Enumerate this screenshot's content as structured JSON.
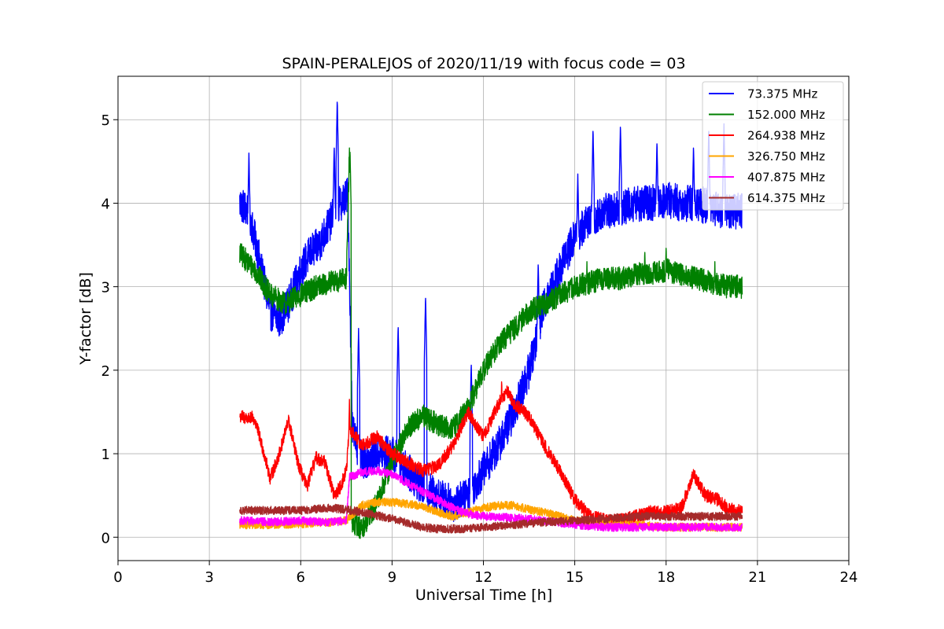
{
  "chart_data": {
    "type": "line",
    "title": "SPAIN-PERALEJOS of 2020/11/19 with focus code = 03",
    "xlabel": "Universal Time [h]",
    "ylabel": "Y-factor [dB]",
    "xlim": [
      0,
      24
    ],
    "ylim": [
      -0.28,
      5.52
    ],
    "xticks": [
      0,
      3,
      6,
      9,
      12,
      15,
      18,
      21,
      24
    ],
    "yticks": [
      0,
      1,
      2,
      3,
      4,
      5
    ],
    "grid": true,
    "legend_position": "top-right",
    "series": [
      {
        "name": "  73.375 MHz",
        "color": "#0000ff",
        "x": [
          4.0,
          4.3,
          4.6,
          5.0,
          5.3,
          5.6,
          6.0,
          6.3,
          6.6,
          7.0,
          7.3,
          7.55,
          7.7,
          8.0,
          8.5,
          9.0,
          9.5,
          10.0,
          10.5,
          11.0,
          11.5,
          12.0,
          12.5,
          13.0,
          13.5,
          14.0,
          14.5,
          15.0,
          15.5,
          16.0,
          16.5,
          17.0,
          17.5,
          18.0,
          18.5,
          19.0,
          19.5,
          20.0,
          20.5
        ],
        "y": [
          4.0,
          3.9,
          3.4,
          2.7,
          2.6,
          2.8,
          3.2,
          3.4,
          3.5,
          3.8,
          4.0,
          4.1,
          1.3,
          0.9,
          1.0,
          1.0,
          0.8,
          0.6,
          0.5,
          0.4,
          0.5,
          0.8,
          1.1,
          1.5,
          2.0,
          2.8,
          3.2,
          3.6,
          3.8,
          3.9,
          3.95,
          4.0,
          4.0,
          4.05,
          4.0,
          4.0,
          3.95,
          3.9,
          3.9
        ],
        "peaks": [
          [
            4.3,
            4.6
          ],
          [
            7.1,
            4.7
          ],
          [
            7.2,
            5.25
          ],
          [
            7.9,
            2.5
          ],
          [
            9.2,
            2.55
          ],
          [
            10.1,
            2.9
          ],
          [
            11.6,
            2.1
          ],
          [
            13.8,
            3.3
          ],
          [
            15.1,
            4.35
          ],
          [
            15.6,
            4.9
          ],
          [
            16.5,
            4.95
          ],
          [
            17.7,
            4.75
          ],
          [
            18.9,
            4.7
          ],
          [
            19.4,
            4.9
          ],
          [
            19.9,
            4.95
          ]
        ],
        "noise": 0.22
      },
      {
        "name": "152.000 MHz",
        "color": "#008000",
        "x": [
          4.0,
          4.5,
          5.0,
          5.5,
          6.0,
          6.5,
          7.0,
          7.5,
          7.6,
          7.65,
          8.0,
          8.5,
          9.0,
          9.5,
          10.0,
          10.5,
          11.0,
          11.5,
          12.0,
          12.5,
          13.0,
          13.5,
          14.0,
          14.5,
          15.0,
          15.5,
          16.0,
          16.5,
          17.0,
          17.5,
          18.0,
          18.5,
          19.0,
          19.5,
          20.0,
          20.5
        ],
        "y": [
          3.4,
          3.2,
          2.9,
          2.8,
          2.9,
          3.0,
          3.05,
          3.1,
          4.6,
          0.2,
          0.1,
          0.4,
          0.9,
          1.3,
          1.45,
          1.35,
          1.3,
          1.55,
          2.0,
          2.3,
          2.5,
          2.7,
          2.8,
          2.9,
          3.0,
          3.05,
          3.1,
          3.1,
          3.15,
          3.15,
          3.2,
          3.15,
          3.1,
          3.05,
          3.0,
          3.0
        ],
        "peaks": [
          [
            7.62,
            4.65
          ],
          [
            15.4,
            3.3
          ],
          [
            17.3,
            3.45
          ],
          [
            18.0,
            3.5
          ],
          [
            19.6,
            3.3
          ]
        ],
        "noise": 0.14
      },
      {
        "name": "264.938 MHz",
        "color": "#ff0000",
        "x": [
          4.0,
          4.5,
          4.8,
          5.0,
          5.3,
          5.6,
          5.9,
          6.2,
          6.5,
          6.8,
          7.1,
          7.3,
          7.5,
          7.6,
          8.0,
          8.5,
          9.0,
          9.5,
          10.0,
          10.5,
          11.0,
          11.5,
          12.0,
          12.5,
          12.8,
          13.0,
          13.5,
          14.0,
          14.5,
          15.0,
          15.5,
          16.0,
          16.5,
          17.0,
          17.5,
          18.0,
          18.5,
          18.9,
          19.3,
          19.7,
          20.0,
          20.5
        ],
        "y": [
          1.45,
          1.4,
          1.0,
          0.7,
          1.0,
          1.4,
          0.9,
          0.6,
          0.95,
          0.9,
          0.5,
          0.6,
          0.8,
          1.3,
          1.1,
          1.2,
          1.0,
          0.9,
          0.8,
          0.85,
          1.1,
          1.5,
          1.2,
          1.6,
          1.75,
          1.6,
          1.45,
          1.1,
          0.8,
          0.45,
          0.25,
          0.2,
          0.2,
          0.25,
          0.3,
          0.3,
          0.35,
          0.75,
          0.5,
          0.45,
          0.35,
          0.3
        ],
        "peaks": [
          [
            4.4,
            1.55
          ],
          [
            5.6,
            1.5
          ],
          [
            7.6,
            1.65
          ],
          [
            12.6,
            1.9
          ],
          [
            18.9,
            0.85
          ]
        ],
        "noise": 0.08
      },
      {
        "name": "326.750 MHz",
        "color": "#ffa500",
        "x": [
          4.0,
          5.0,
          6.0,
          7.0,
          7.5,
          8.0,
          8.5,
          9.0,
          9.5,
          10.0,
          10.5,
          11.0,
          11.5,
          12.0,
          12.5,
          13.0,
          13.5,
          14.0,
          14.5,
          15.0,
          16.0,
          17.0,
          18.0,
          19.0,
          20.0,
          20.5
        ],
        "y": [
          0.15,
          0.15,
          0.16,
          0.18,
          0.2,
          0.38,
          0.42,
          0.42,
          0.4,
          0.37,
          0.3,
          0.25,
          0.3,
          0.35,
          0.38,
          0.38,
          0.33,
          0.3,
          0.25,
          0.2,
          0.15,
          0.15,
          0.12,
          0.12,
          0.12,
          0.12
        ],
        "noise": 0.05
      },
      {
        "name": "407.875 MHz",
        "color": "#ff00ff",
        "x": [
          4.0,
          5.0,
          6.0,
          7.0,
          7.5,
          7.6,
          8.0,
          8.5,
          9.0,
          9.5,
          10.0,
          10.5,
          11.0,
          11.5,
          12.0,
          12.5,
          13.0,
          13.5,
          14.0,
          15.0,
          16.0,
          17.0,
          18.0,
          19.0,
          20.0,
          20.5
        ],
        "y": [
          0.2,
          0.18,
          0.2,
          0.18,
          0.2,
          0.72,
          0.78,
          0.8,
          0.75,
          0.65,
          0.55,
          0.45,
          0.35,
          0.28,
          0.25,
          0.24,
          0.23,
          0.22,
          0.2,
          0.15,
          0.12,
          0.12,
          0.12,
          0.12,
          0.12,
          0.12
        ],
        "noise": 0.05
      },
      {
        "name": "614.375 MHz",
        "color": "#a52a2a",
        "x": [
          4.0,
          5.0,
          6.0,
          7.0,
          7.5,
          8.0,
          9.0,
          10.0,
          10.5,
          11.0,
          11.5,
          12.0,
          13.0,
          14.0,
          15.0,
          16.0,
          17.0,
          18.0,
          19.0,
          20.0,
          20.5
        ],
        "y": [
          0.32,
          0.32,
          0.32,
          0.35,
          0.33,
          0.3,
          0.22,
          0.12,
          0.1,
          0.1,
          0.1,
          0.12,
          0.15,
          0.18,
          0.2,
          0.22,
          0.25,
          0.25,
          0.25,
          0.25,
          0.25
        ],
        "noise": 0.05
      }
    ]
  }
}
